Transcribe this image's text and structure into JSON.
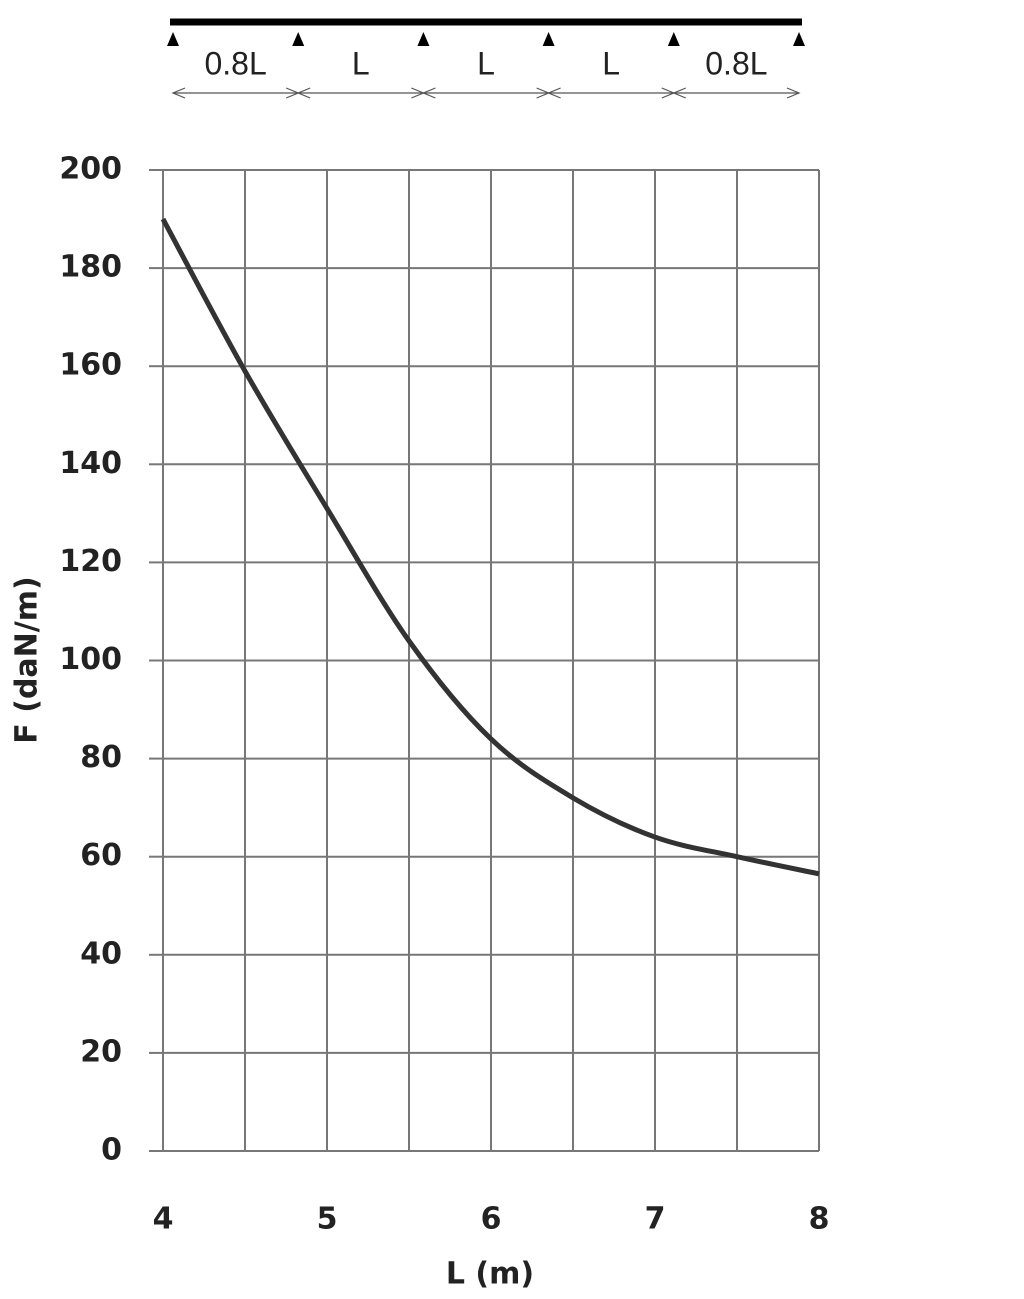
{
  "beam": {
    "spans": [
      "0.8L",
      "L",
      "L",
      "L",
      "0.8L"
    ]
  },
  "chart_data": {
    "type": "line",
    "x_label": "L (m)",
    "y_label": "F (daN/m)",
    "x": [
      4,
      4.5,
      5,
      5.5,
      6,
      6.5,
      7,
      7.5,
      8
    ],
    "series": [
      {
        "color": "#333333",
        "values": [
          190,
          159,
          131,
          104,
          84,
          72,
          64,
          60,
          56.5
        ]
      }
    ],
    "xlim": [
      4,
      8
    ],
    "xticks": [
      4,
      5,
      6,
      7,
      8
    ],
    "x_minor_ticks": [
      4.5,
      5.5,
      6.5,
      7.5
    ],
    "ylim": [
      0,
      200
    ],
    "yticks": [
      0,
      20,
      40,
      60,
      80,
      100,
      120,
      140,
      160,
      180,
      200
    ],
    "grid": true
  }
}
